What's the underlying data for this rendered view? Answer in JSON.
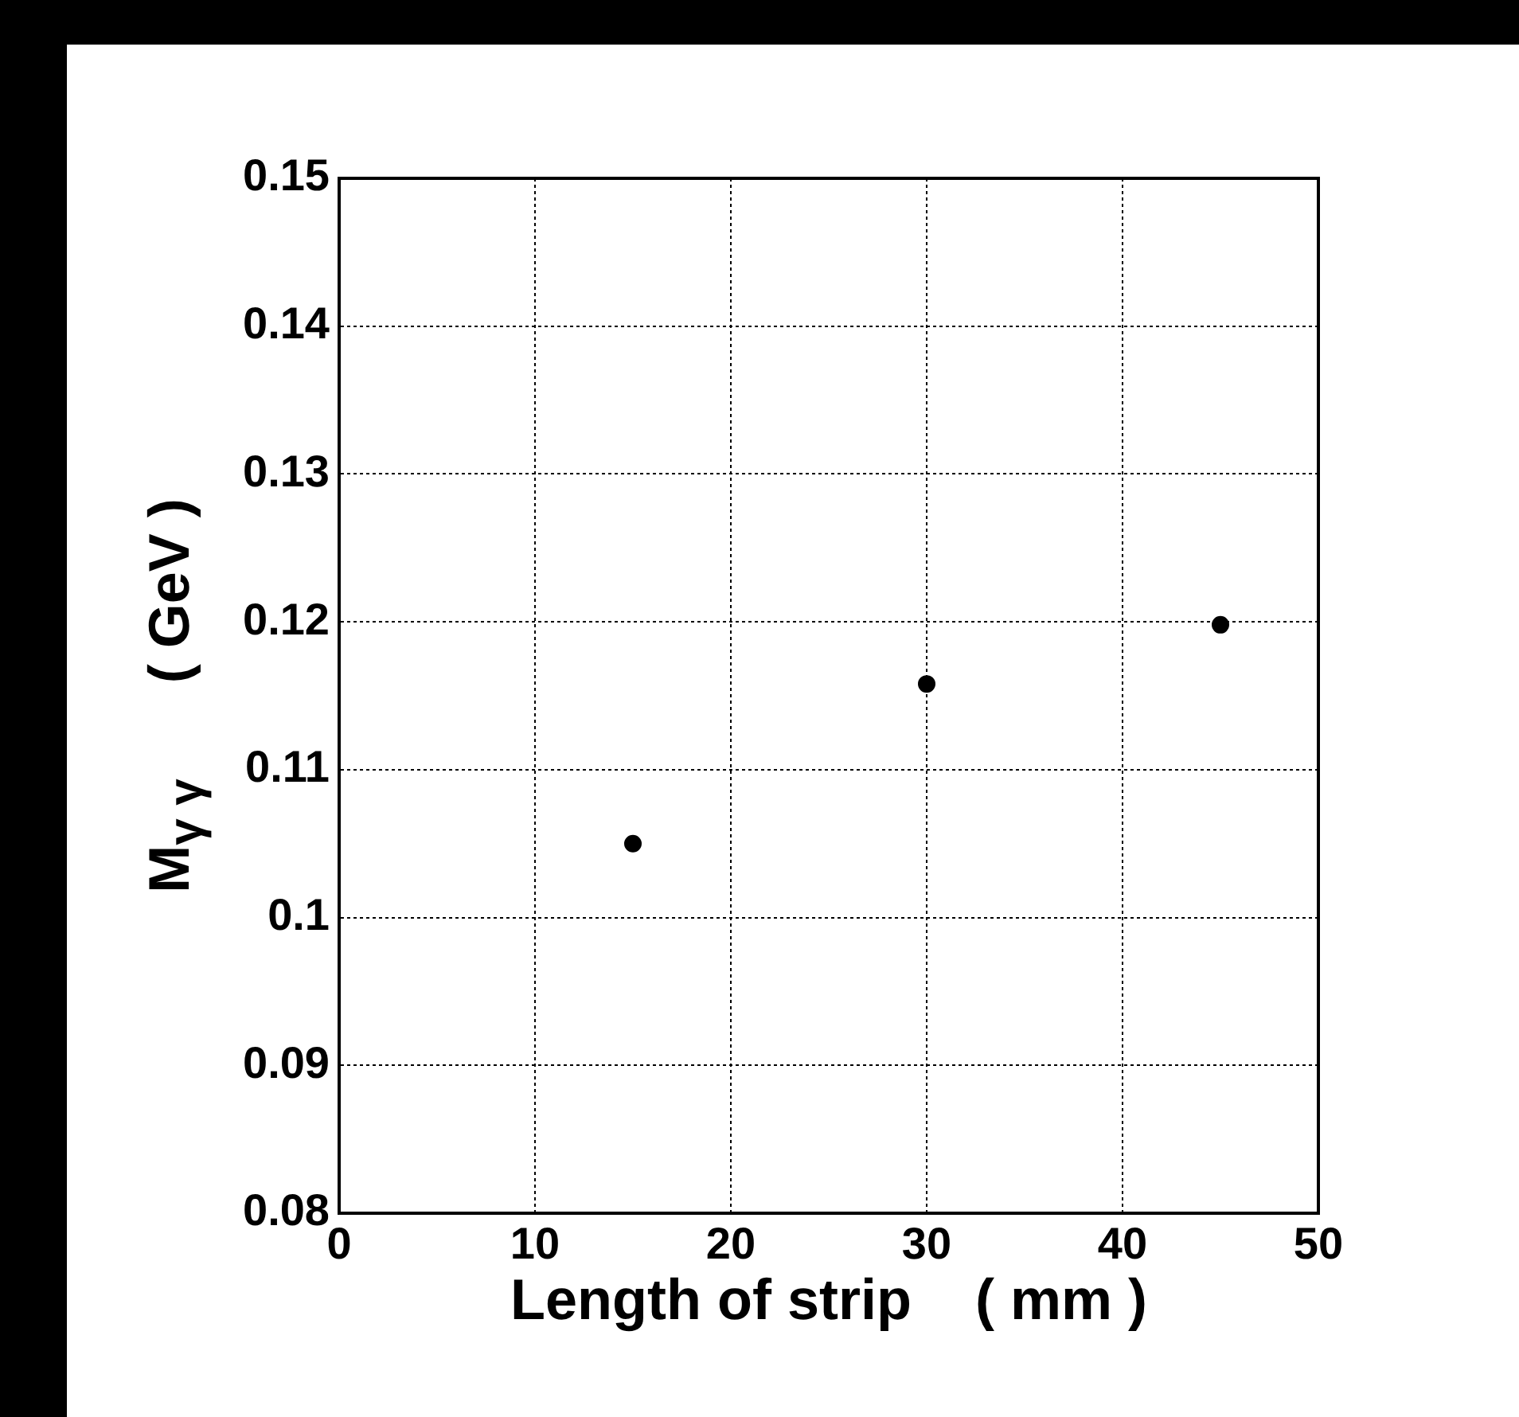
{
  "chart_data": {
    "type": "scatter",
    "xlabel": "Length of strip    ( mm )",
    "ylabel": "M$_{γ γ}$      ( GeV )",
    "x": [
      15,
      30,
      45
    ],
    "values": [
      0.105,
      0.1158,
      0.1198
    ],
    "color": "#000000",
    "marker": "circle",
    "xlim": [
      0,
      50
    ],
    "xticks": [
      0,
      10,
      20,
      30,
      40,
      50
    ],
    "ylim": [
      0.08,
      0.15
    ],
    "yticks": [
      0.08,
      0.09,
      0.1,
      0.11,
      0.12,
      0.13,
      0.14,
      0.15
    ],
    "grid": true,
    "legend": false
  }
}
